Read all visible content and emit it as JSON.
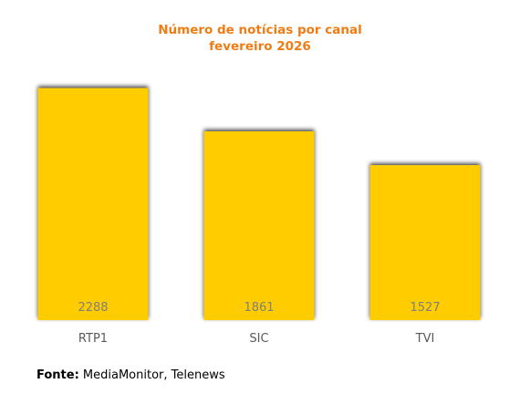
{
  "chart_data": {
    "type": "bar",
    "title": "Número de notícias por canal",
    "subtitle": "fevereiro 2026",
    "categories": [
      "RTP1",
      "SIC",
      "TVI"
    ],
    "values": [
      2288,
      1861,
      1527
    ],
    "data_labels": [
      "2288",
      "1861",
      "1527"
    ],
    "xlabel": "",
    "ylabel": "",
    "ylim": [
      0,
      2400
    ],
    "grid": false,
    "legend": "none",
    "colors": {
      "bar": "#ffcc00",
      "bar_shadow": "#6b6b6b",
      "title": "#f07c13",
      "data_label": "#7f7f7f",
      "tick_label": "#595959"
    }
  },
  "source": {
    "label": "Fonte:",
    "text": "MediaMonitor, Telenews"
  }
}
